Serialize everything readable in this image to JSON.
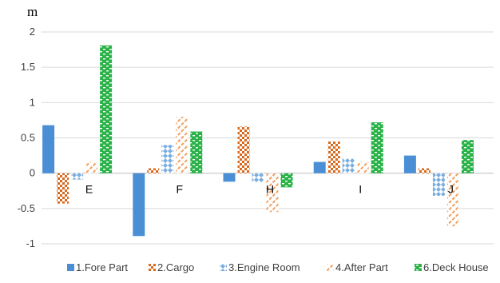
{
  "chart_data": {
    "type": "bar",
    "title": "",
    "unit_label": "m",
    "xlabel": "",
    "ylabel": "",
    "categories": [
      "E",
      "F",
      "H",
      "I",
      "J"
    ],
    "yticks": [
      "2",
      "1.5",
      "1",
      "0.5",
      "0",
      "-0.5",
      "-1"
    ],
    "ylim": [
      -1,
      2
    ],
    "grid": true,
    "legend_position": "bottom",
    "series": [
      {
        "name": "1.Fore Part",
        "color": "#4a8fd6",
        "pattern": "solid",
        "values": [
          0.68,
          -0.89,
          -0.12,
          0.16,
          0.25
        ]
      },
      {
        "name": "2.Cargo",
        "color": "#d86a1e",
        "pattern": "checker",
        "values": [
          -0.43,
          0.07,
          0.66,
          0.45,
          0.07
        ]
      },
      {
        "name": "3.Engine Room",
        "color": "#7aaee0",
        "pattern": "diamond",
        "values": [
          -0.09,
          0.4,
          -0.13,
          0.21,
          -0.32
        ]
      },
      {
        "name": "4.After Part",
        "color": "#f0a060",
        "pattern": "dash",
        "values": [
          0.16,
          0.8,
          -0.55,
          0.16,
          -0.75
        ]
      },
      {
        "name": "6.Deck House",
        "color": "#2bb34a",
        "pattern": "brick",
        "values": [
          1.81,
          0.59,
          -0.2,
          0.72,
          0.47
        ]
      }
    ]
  }
}
